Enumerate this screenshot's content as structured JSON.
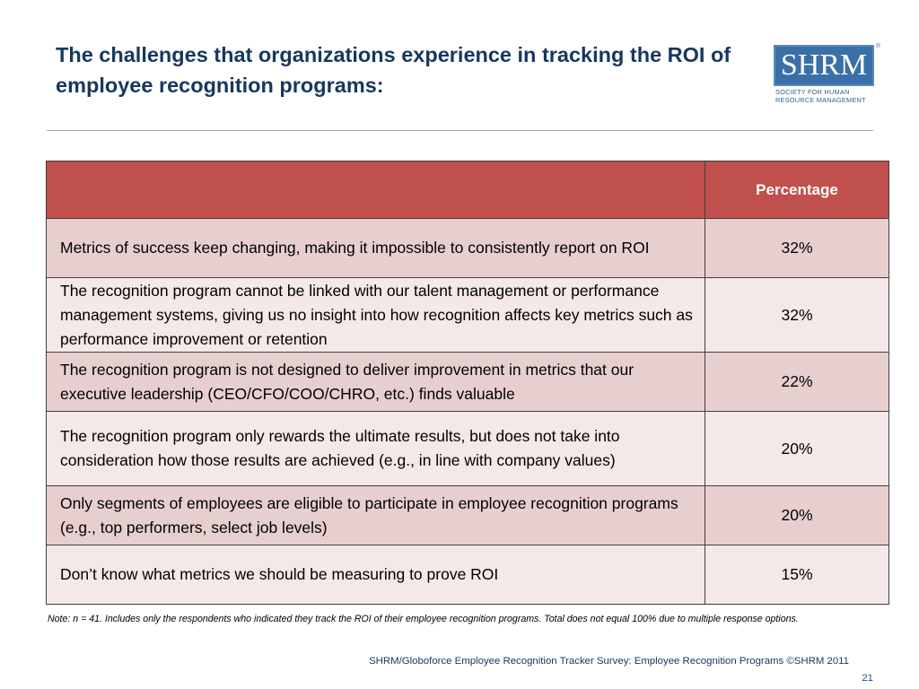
{
  "slide": {
    "title": "The challenges that organizations experience in tracking the ROI of employee recognition programs:",
    "logo": {
      "text": "SHRM",
      "registered_mark": "®",
      "subtitle": "SOCIETY FOR HUMAN\nRESOURCE MANAGEMENT"
    },
    "accent_color": "#c0504d",
    "title_color": "#17375e"
  },
  "table": {
    "header": {
      "label": "",
      "percentage": "Percentage"
    },
    "rows": [
      {
        "label": "Metrics of success keep changing, making it impossible to consistently report on ROI",
        "percentage": "32%"
      },
      {
        "label": "The recognition program cannot be linked with our talent management or performance management systems, giving us no insight into how recognition affects key metrics such as performance improvement or retention",
        "percentage": "32%"
      },
      {
        "label": "The recognition program is not designed to deliver improvement in metrics that our executive leadership (CEO/CFO/COO/CHRO, etc.) finds valuable",
        "percentage": "22%"
      },
      {
        "label": "The recognition program only rewards the ultimate results, but does not take into consideration how those results are achieved (e.g., in line with company values)",
        "percentage": "20%"
      },
      {
        "label": "Only segments of employees are eligible to participate in employee recognition programs (e.g., top performers, select job levels)",
        "percentage": "20%"
      },
      {
        "label": "Don’t know what metrics we should be measuring to prove ROI",
        "percentage": "15%"
      }
    ]
  },
  "note": "Note: n = 41. Includes only the respondents who indicated they track the ROI of their employee recognition programs. Total does not equal 100% due to multiple response options.",
  "footer": {
    "source": "SHRM/Globoforce Employee Recognition Tracker Survey: Employee Recognition Programs ©SHRM 2011",
    "page_number": "21"
  }
}
